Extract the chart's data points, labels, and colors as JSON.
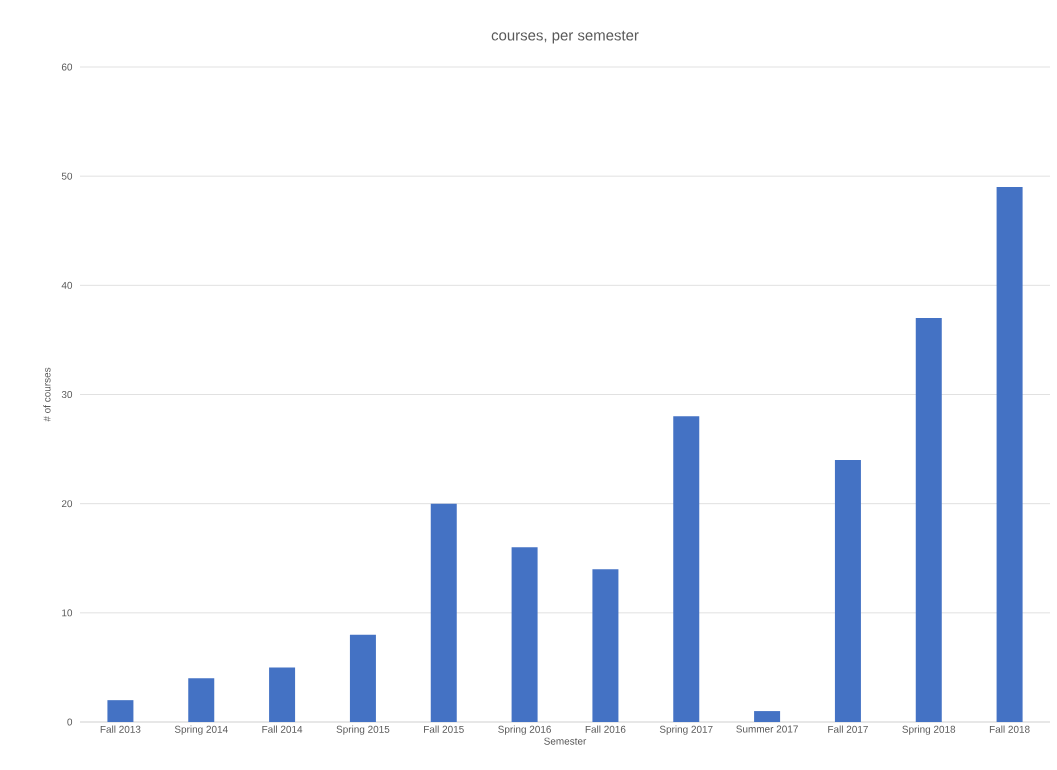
{
  "chart_data": {
    "type": "bar",
    "title": "courses, per semester",
    "xlabel": "Semester",
    "ylabel": "# of courses",
    "categories": [
      "Fall 2013",
      "Spring 2014",
      "Fall 2014",
      "Spring 2015",
      "Fall 2015",
      "Spring 2016",
      "Fall 2016",
      "Spring 2017",
      "Summer 2017",
      "Fall 2017",
      "Spring 2018",
      "Fall 2018"
    ],
    "values": [
      2,
      4,
      5,
      8,
      20,
      16,
      14,
      28,
      1,
      24,
      37,
      49
    ],
    "color": "#4472c4",
    "ylim": [
      0,
      60
    ],
    "yticks": [
      0,
      10,
      20,
      30,
      40,
      50,
      60
    ],
    "grid": "y"
  }
}
